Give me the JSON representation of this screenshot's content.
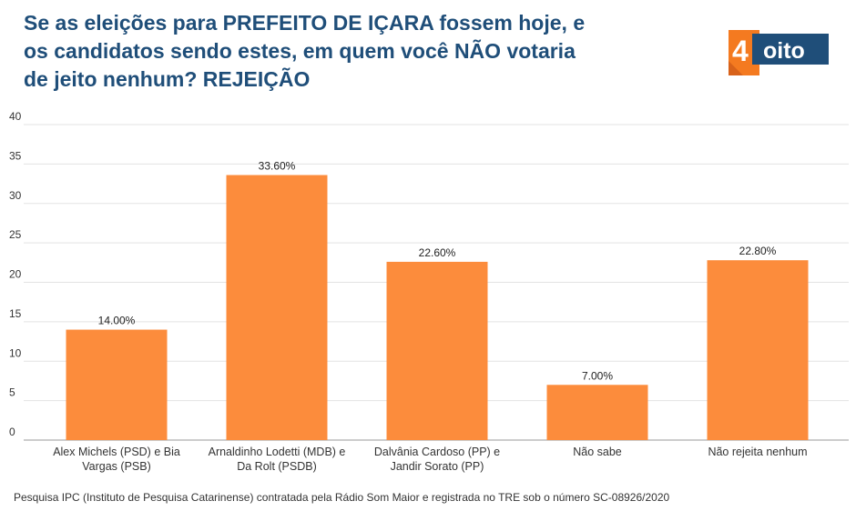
{
  "title_lines": [
    "Se as eleições para PREFEITO DE IÇARA fossem hoje, e",
    "os candidatos sendo estes, em quem você NÃO votaria",
    "de jeito nenhum? REJEIÇÃO"
  ],
  "logo": {
    "number": "4",
    "word": "oito",
    "accent_color": "#f47a20",
    "brand_color": "#1f4e79"
  },
  "source": "Pesquisa IPC (Instituto de Pesquisa Catarinense) contratada pela Rádio Som Maior e registrada no TRE sob o número SC-08926/2020",
  "chart_data": {
    "type": "bar",
    "categories": [
      [
        "Alex Michels (PSD) e Bia",
        "Vargas (PSB)"
      ],
      [
        "Arnaldinho Lodetti (MDB) e",
        "Da Rolt (PSDB)"
      ],
      [
        "Dalvânia Cardoso (PP) e",
        "Jandir Sorato (PP)"
      ],
      [
        "Não sabe"
      ],
      [
        "Não rejeita nenhum"
      ]
    ],
    "values": [
      14.0,
      33.6,
      22.6,
      7.0,
      22.8
    ],
    "data_labels": [
      "14.00%",
      "33.60%",
      "22.60%",
      "7.00%",
      "22.80%"
    ],
    "y_ticks": [
      0,
      5,
      10,
      15,
      20,
      25,
      30,
      35,
      40
    ],
    "ylim": [
      0,
      40
    ],
    "grid": true,
    "bar_color": "#fc8c3c"
  }
}
